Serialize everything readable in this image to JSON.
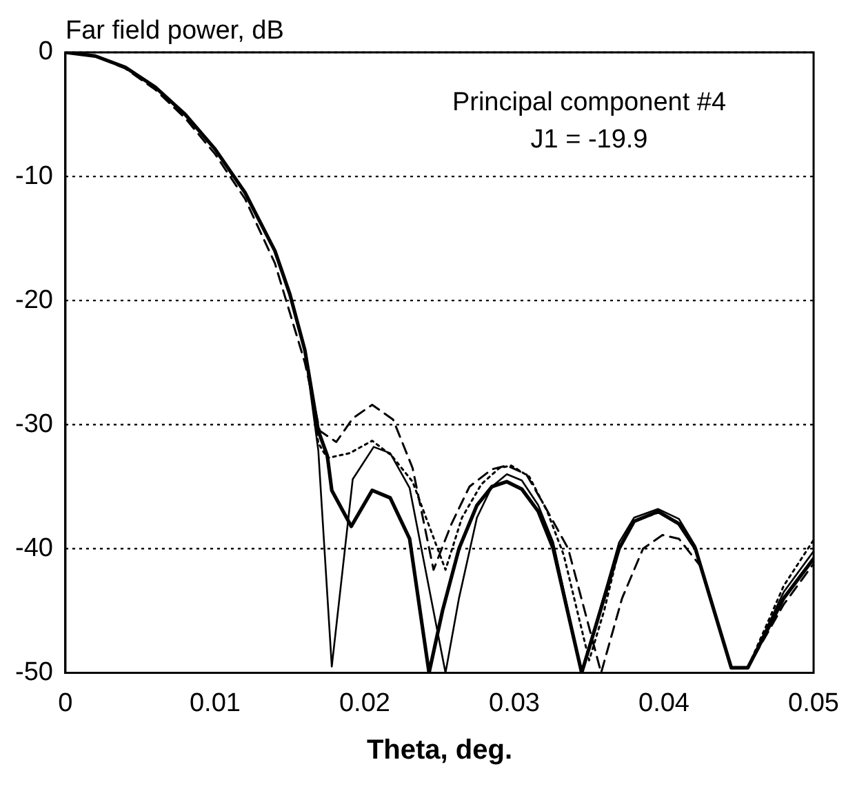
{
  "chart_data": {
    "type": "line",
    "ylabel": "Far field power, dB",
    "xlabel": "Theta, deg.",
    "annotations": [
      "Principal component #4",
      "J1 = -19.9"
    ],
    "xlim": [
      0,
      0.05
    ],
    "xticks": [
      0,
      0.01,
      0.02,
      0.03,
      0.04,
      0.05
    ],
    "ylim": [
      -50,
      0
    ],
    "yticks": [
      -50,
      -40,
      -30,
      -20,
      -10,
      0
    ],
    "grid": "y",
    "marker": "none",
    "legend": false,
    "series": [
      {
        "color": "#000000",
        "line_style": "solid",
        "x": [
          0,
          0.002,
          0.004,
          0.006,
          0.008,
          0.01,
          0.012,
          0.014,
          0.015,
          0.016,
          0.0169,
          0.0175,
          0.0178,
          0.0191,
          0.0205,
          0.0217,
          0.023,
          0.0243,
          0.0252,
          0.0263,
          0.0275,
          0.0285,
          0.0295,
          0.0305,
          0.0316,
          0.0326,
          0.0345,
          0.0355,
          0.037,
          0.038,
          0.0396,
          0.041,
          0.0421,
          0.0445,
          0.0456,
          0.048,
          0.05
        ],
        "values": [
          0,
          -0.3,
          -1.2,
          -2.8,
          -5,
          -7.8,
          -11.3,
          -16,
          -19.5,
          -24,
          -30.5,
          -32.5,
          -35.3,
          -38.2,
          -35.3,
          -35.9,
          -39.2,
          -50,
          -45,
          -40,
          -36.5,
          -35,
          -34.6,
          -35.2,
          -37,
          -40,
          -50,
          -46,
          -40,
          -37.8,
          -37,
          -38,
          -40,
          -49.6,
          -49.6,
          -44,
          -40.8
        ]
      },
      {
        "color": "#000000",
        "line_style": "solid",
        "x": [
          0,
          0.002,
          0.004,
          0.006,
          0.008,
          0.01,
          0.012,
          0.014,
          0.015,
          0.016,
          0.0169,
          0.0178,
          0.0192,
          0.0206,
          0.0217,
          0.023,
          0.0254,
          0.0263,
          0.0275,
          0.0285,
          0.0295,
          0.0305,
          0.0316,
          0.0326,
          0.0345,
          0.0357,
          0.037,
          0.038,
          0.0396,
          0.041,
          0.0421,
          0.0445,
          0.0456,
          0.048,
          0.05
        ],
        "values": [
          0,
          -0.3,
          -1.2,
          -2.8,
          -5,
          -7.8,
          -11.3,
          -16,
          -19.5,
          -24,
          -32.1,
          -49.5,
          -34.4,
          -31.8,
          -32.3,
          -35.1,
          -50,
          -44,
          -37.5,
          -35,
          -34,
          -34.5,
          -36.5,
          -39.5,
          -50,
          -45,
          -39.5,
          -37.5,
          -36.8,
          -37.6,
          -39.8,
          -49.6,
          -49.6,
          -43.5,
          -40.2
        ]
      },
      {
        "color": "#000000",
        "line_style": "dashed",
        "x": [
          0,
          0.002,
          0.004,
          0.006,
          0.008,
          0.01,
          0.012,
          0.014,
          0.015,
          0.016,
          0.017,
          0.0181,
          0.0192,
          0.0205,
          0.0219,
          0.0232,
          0.0246,
          0.0258,
          0.027,
          0.0285,
          0.0295,
          0.0308,
          0.032,
          0.0336,
          0.0358,
          0.0372,
          0.0386,
          0.0399,
          0.041,
          0.0425,
          0.0445,
          0.0456,
          0.048,
          0.05
        ],
        "values": [
          0,
          -0.3,
          -1.3,
          -3,
          -5.3,
          -8.2,
          -11.8,
          -17,
          -21,
          -25,
          -30.5,
          -31.4,
          -29.5,
          -28.4,
          -29.6,
          -33.5,
          -41.7,
          -38,
          -35,
          -33.6,
          -33.3,
          -34,
          -36.5,
          -40,
          -50,
          -44,
          -40,
          -38.9,
          -39.2,
          -41.5,
          -49.6,
          -49.6,
          -44.5,
          -41.2
        ]
      },
      {
        "color": "#000000",
        "line_style": "dotted",
        "x": [
          0,
          0.002,
          0.004,
          0.006,
          0.008,
          0.01,
          0.012,
          0.014,
          0.015,
          0.016,
          0.0169,
          0.0175,
          0.019,
          0.0205,
          0.0218,
          0.0232,
          0.0254,
          0.0265,
          0.0278,
          0.029,
          0.0298,
          0.031,
          0.0322,
          0.0333,
          0.035,
          0.036,
          0.037,
          0.038,
          0.0396,
          0.041,
          0.0421,
          0.0445,
          0.0456,
          0.048,
          0.05
        ],
        "values": [
          0,
          -0.3,
          -1.2,
          -2.8,
          -5,
          -7.8,
          -11.3,
          -16,
          -19.5,
          -24,
          -31.5,
          -32.7,
          -32.3,
          -31.3,
          -32.5,
          -34.6,
          -41.7,
          -37.5,
          -34.8,
          -33.5,
          -33.3,
          -34.2,
          -37,
          -40.5,
          -49,
          -45,
          -40,
          -37.8,
          -37.1,
          -37.9,
          -40,
          -49.6,
          -49.6,
          -43,
          -39.3
        ]
      }
    ]
  }
}
